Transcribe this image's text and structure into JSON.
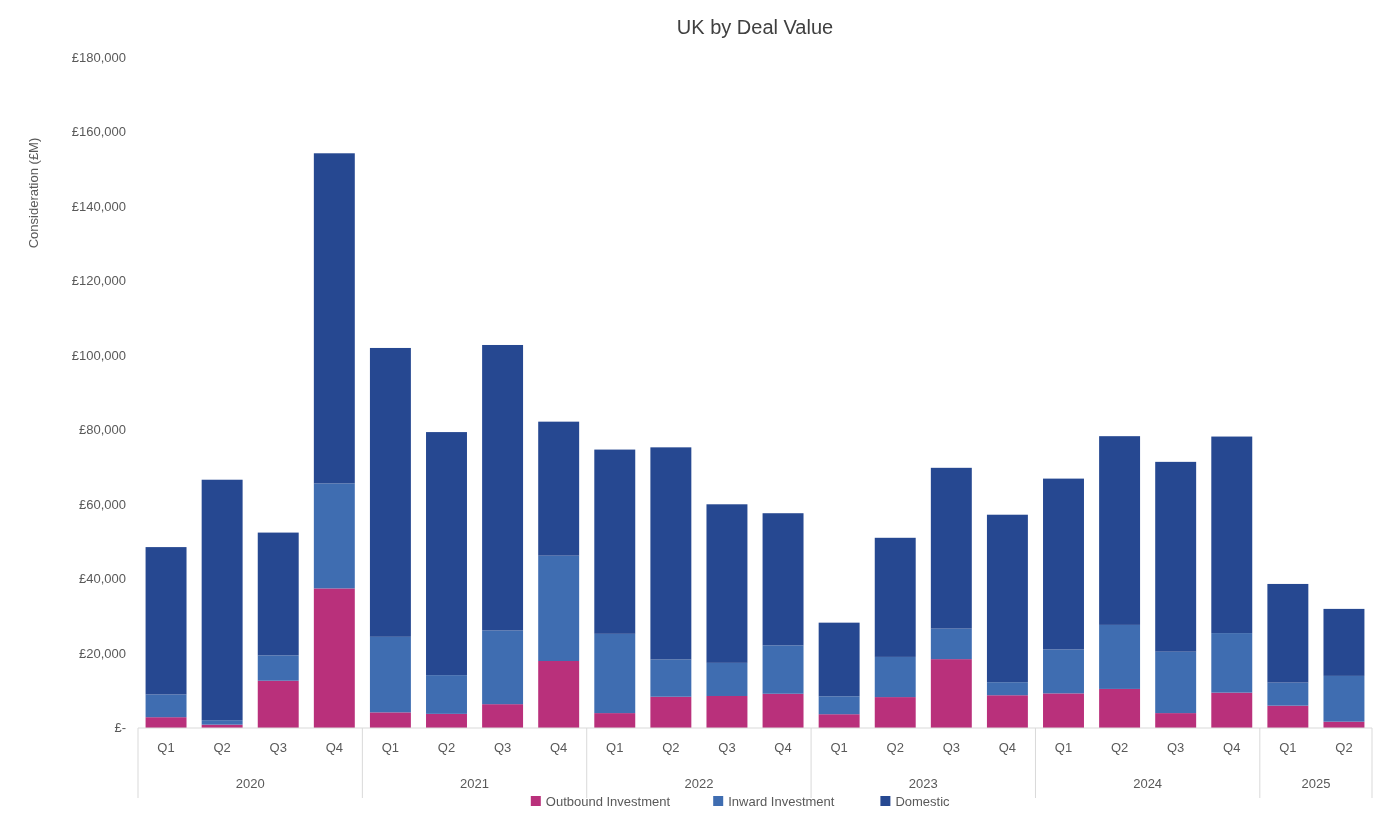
{
  "chart_data": {
    "type": "bar",
    "title": "UK by Deal Value",
    "ylabel": "Consideration (£M)",
    "stacked": true,
    "legend": "bottom",
    "categories": [
      "Q1",
      "Q2",
      "Q3",
      "Q4",
      "Q1",
      "Q2",
      "Q3",
      "Q4",
      "Q1",
      "Q2",
      "Q3",
      "Q4",
      "Q1",
      "Q2",
      "Q3",
      "Q4",
      "Q1",
      "Q2",
      "Q3",
      "Q4",
      "Q1",
      "Q2"
    ],
    "annotations": [
      "2020",
      "2021",
      "2022",
      "2023",
      "2024",
      "2025"
    ],
    "ylim": [
      0,
      180000
    ],
    "yticks": [
      {
        "value": 0,
        "label": "£-"
      },
      {
        "value": 20000,
        "label": "£20,000"
      },
      {
        "value": 40000,
        "label": "£40,000"
      },
      {
        "value": 60000,
        "label": "£60,000"
      },
      {
        "value": 80000,
        "label": "£80,000"
      },
      {
        "value": 100000,
        "label": "£100,000"
      },
      {
        "value": 120000,
        "label": "£120,000"
      },
      {
        "value": 140000,
        "label": "£140,000"
      },
      {
        "value": 160000,
        "label": "£160,000"
      },
      {
        "value": 180000,
        "label": "£180,000"
      }
    ],
    "series": [
      {
        "name": "Outbound Investment",
        "color": "#b9307b",
        "values": [
          2900,
          900,
          12700,
          37500,
          4200,
          3800,
          6400,
          18000,
          4000,
          8400,
          8600,
          9200,
          3700,
          8300,
          18500,
          8800,
          9300,
          10500,
          4000,
          9500,
          6000,
          1700
        ]
      },
      {
        "name": "Inward Investment",
        "color": "#3f6db1",
        "values": [
          6100,
          1200,
          6800,
          28200,
          20300,
          10400,
          19800,
          28300,
          21300,
          10000,
          8900,
          13000,
          4800,
          10800,
          8200,
          3500,
          11800,
          17200,
          16500,
          16000,
          6200,
          12300
        ]
      },
      {
        "name": "Domestic",
        "color": "#264891",
        "values": [
          39600,
          64600,
          33000,
          88700,
          77600,
          65300,
          76700,
          36000,
          49500,
          57000,
          42600,
          35500,
          19800,
          32000,
          43200,
          45000,
          45900,
          50700,
          51000,
          52800,
          26500,
          18000
        ]
      }
    ]
  }
}
